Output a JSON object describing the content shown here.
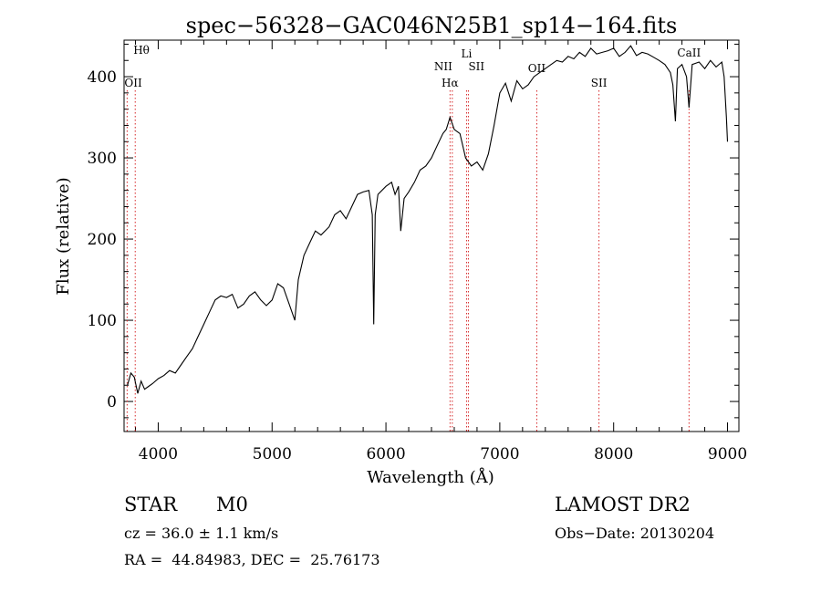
{
  "chart_data": {
    "type": "line",
    "title": "spec−56328−GAC046N25B1_sp14−164.fits",
    "xlabel": "Wavelength (Å)",
    "ylabel": "Flux (relative)",
    "xlim": [
      3700,
      9100
    ],
    "ylim": [
      -37,
      445
    ],
    "x_ticks": [
      4000,
      5000,
      6000,
      7000,
      8000,
      9000
    ],
    "x_tick_labels": [
      "4000",
      "5000",
      "6000",
      "7000",
      "8000",
      "9000"
    ],
    "y_ticks": [
      0,
      100,
      200,
      300,
      400
    ],
    "y_tick_labels": [
      "0",
      "100",
      "200",
      "300",
      "400"
    ],
    "grid": false,
    "line_color": "#000000",
    "marker_color": "#d62728",
    "series": [
      {
        "x": [
          3730,
          3760,
          3790,
          3820,
          3850,
          3880,
          3910,
          3950,
          4000,
          4050,
          4100,
          4150,
          4200,
          4250,
          4300,
          4350,
          4400,
          4450,
          4500,
          4550,
          4600,
          4650,
          4700,
          4750,
          4800,
          4850,
          4900,
          4950,
          5000,
          5050,
          5100,
          5150,
          5200,
          5230,
          5280,
          5330,
          5380,
          5430,
          5500,
          5550,
          5600,
          5650,
          5700,
          5750,
          5800,
          5850,
          5880,
          5893,
          5906,
          5930,
          6000,
          6050,
          6080,
          6110,
          6130,
          6160,
          6200,
          6250,
          6300,
          6350,
          6400,
          6450,
          6500,
          6530,
          6563,
          6600,
          6650,
          6700,
          6750,
          6800,
          6850,
          6900,
          6950,
          7000,
          7050,
          7100,
          7150,
          7200,
          7250,
          7300,
          7350,
          7400,
          7450,
          7500,
          7550,
          7600,
          7650,
          7700,
          7750,
          7800,
          7850,
          7900,
          7950,
          8000,
          8050,
          8100,
          8150,
          8200,
          8250,
          8300,
          8350,
          8400,
          8450,
          8498,
          8520,
          8542,
          8560,
          8600,
          8640,
          8662,
          8690,
          8750,
          8800,
          8850,
          8900,
          8950,
          8970,
          8990,
          9000
        ],
        "y": [
          20,
          35,
          30,
          10,
          25,
          15,
          18,
          22,
          28,
          32,
          38,
          35,
          45,
          55,
          65,
          80,
          95,
          110,
          125,
          130,
          128,
          132,
          115,
          120,
          130,
          135,
          125,
          118,
          125,
          145,
          140,
          120,
          100,
          150,
          180,
          195,
          210,
          205,
          215,
          230,
          235,
          225,
          240,
          255,
          258,
          260,
          230,
          95,
          230,
          255,
          265,
          270,
          255,
          265,
          210,
          250,
          258,
          270,
          285,
          290,
          300,
          315,
          330,
          335,
          350,
          335,
          330,
          300,
          290,
          295,
          285,
          305,
          340,
          380,
          392,
          370,
          395,
          385,
          390,
          400,
          405,
          410,
          415,
          420,
          418,
          425,
          422,
          430,
          425,
          435,
          428,
          430,
          432,
          435,
          425,
          430,
          438,
          426,
          430,
          428,
          424,
          420,
          415,
          405,
          390,
          345,
          410,
          415,
          400,
          362,
          415,
          418,
          410,
          420,
          412,
          418,
          400,
          350,
          320
        ]
      }
    ],
    "spectral_lines": [
      {
        "label": "Hθ",
        "x": 3798
      },
      {
        "label": "OII",
        "x": 3727
      },
      {
        "label": "Hα",
        "x": 6563
      },
      {
        "label": "NII",
        "x": 6583
      },
      {
        "label": "Li",
        "x": 6708
      },
      {
        "label": "SII",
        "x": 6724
      },
      {
        "label": "OII",
        "x": 7325
      },
      {
        "label": "SII",
        "x": 7871
      },
      {
        "label": "CaII",
        "x": 8662
      }
    ]
  },
  "info": {
    "object_class": "STAR",
    "subclass": "M0",
    "survey": "LAMOST DR2",
    "cz": "cz = 36.0 ± 1.1 km/s",
    "obs_date": "Obs−Date: 20130204",
    "radec": "RA =  44.84983, DEC =  25.76173"
  }
}
